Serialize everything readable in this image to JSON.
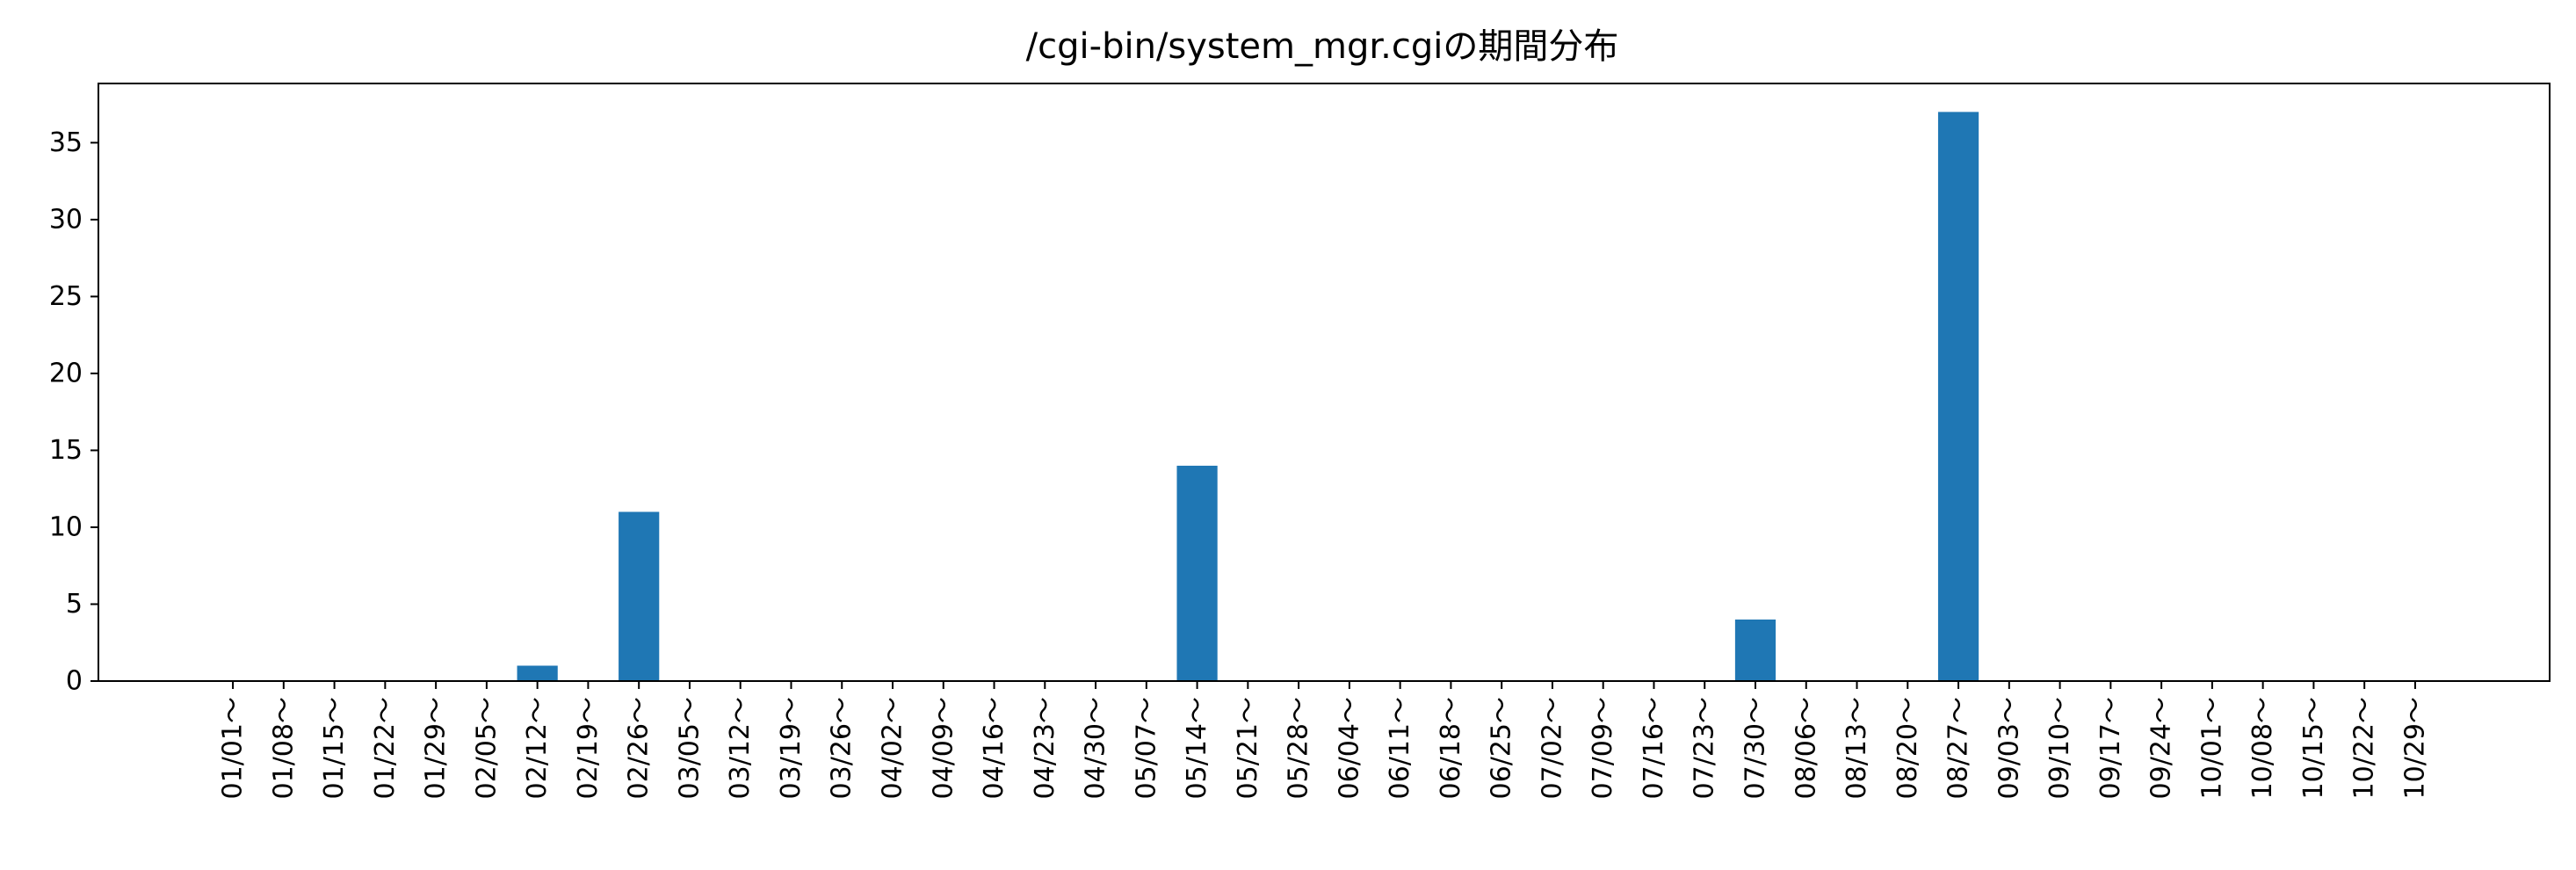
{
  "chart_data": {
    "type": "bar",
    "title": "/cgi-bin/system_mgr.cgiの期間分布",
    "xlabel": "",
    "ylabel": "",
    "categories": [
      "01/01～",
      "01/08～",
      "01/15～",
      "01/22～",
      "01/29～",
      "02/05～",
      "02/12～",
      "02/19～",
      "02/26～",
      "03/05～",
      "03/12～",
      "03/19～",
      "03/26～",
      "04/02～",
      "04/09～",
      "04/16～",
      "04/23～",
      "04/30～",
      "05/07～",
      "05/14～",
      "05/21～",
      "05/28～",
      "06/04～",
      "06/11～",
      "06/18～",
      "06/25～",
      "07/02～",
      "07/09～",
      "07/16～",
      "07/23～",
      "07/30～",
      "08/06～",
      "08/13～",
      "08/20～",
      "08/27～",
      "09/03～",
      "09/10～",
      "09/17～",
      "09/24～",
      "10/01～",
      "10/08～",
      "10/15～",
      "10/22～",
      "10/29～"
    ],
    "values": [
      0,
      0,
      0,
      0,
      0,
      0,
      1,
      0,
      11,
      0,
      0,
      0,
      0,
      0,
      0,
      0,
      0,
      0,
      0,
      14,
      0,
      0,
      0,
      0,
      0,
      0,
      0,
      0,
      0,
      0,
      4,
      0,
      0,
      0,
      37,
      0,
      0,
      0,
      0,
      0,
      0,
      0,
      0,
      0
    ],
    "ylim": [
      0,
      38.85
    ],
    "yticks": [
      0,
      5,
      10,
      15,
      20,
      25,
      30,
      35
    ],
    "grid": false,
    "colors": {
      "bar": "#1f77b4",
      "axis": "#000000"
    }
  }
}
